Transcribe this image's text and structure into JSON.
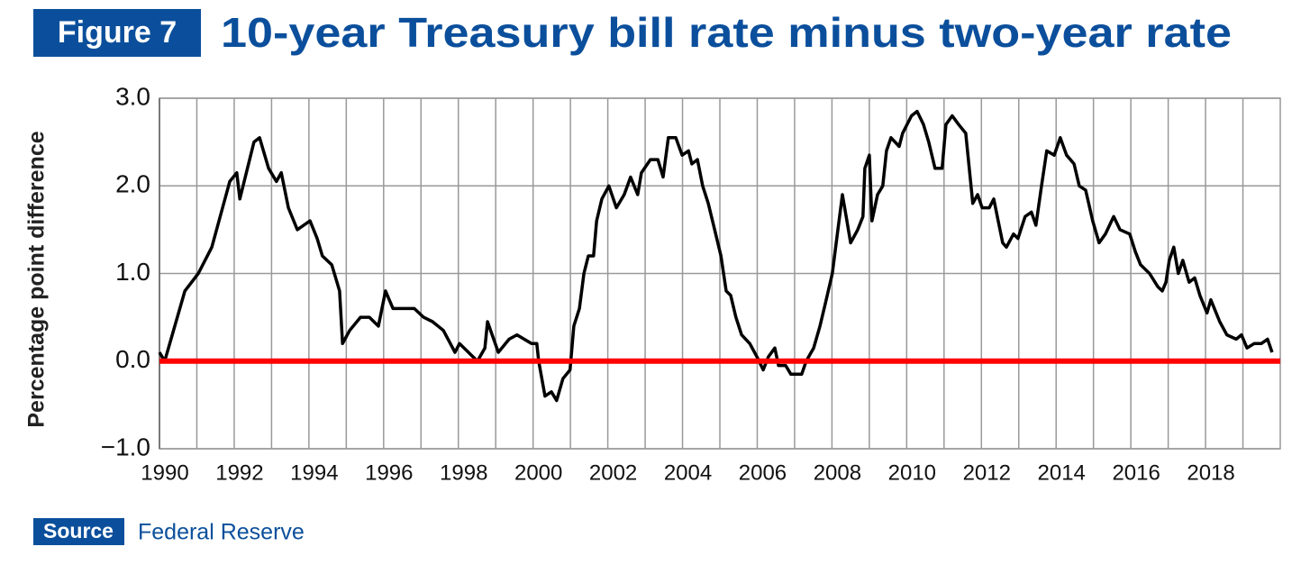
{
  "chart_data": {
    "type": "line",
    "figure_label": "Figure 7",
    "title": "10-year Treasury bill rate minus two-year rate",
    "y_label": "Percentage point difference",
    "source_label": "Source",
    "source": "Federal Reserve",
    "color": "#000000",
    "reference_line": {
      "value": 0,
      "color": "#ff0000"
    },
    "grid": true,
    "xlim": [
      1990,
      2020
    ],
    "xticks": [
      1990,
      1992,
      1994,
      1996,
      1998,
      2000,
      2002,
      2004,
      2006,
      2008,
      2010,
      2012,
      2014,
      2016,
      2018
    ],
    "xminor": [
      1991,
      1993,
      1995,
      1997,
      1999,
      2001,
      2003,
      2005,
      2007,
      2009,
      2011,
      2013,
      2015,
      2017,
      2019
    ],
    "ylim": [
      -1,
      3
    ],
    "yticks": [
      {
        "value": -1,
        "label": "−1.0"
      },
      {
        "value": 0,
        "label": "0.0"
      },
      {
        "value": 1,
        "label": "1.0"
      },
      {
        "value": 2,
        "label": "2.0"
      },
      {
        "value": 3,
        "label": "3.0"
      }
    ],
    "x": [
      1990.0,
      1990.14,
      1990.68,
      1991.04,
      1991.4,
      1991.88,
      1992.07,
      1992.15,
      1992.53,
      1992.68,
      1992.92,
      1993.13,
      1993.26,
      1993.45,
      1993.69,
      1994.03,
      1994.22,
      1994.36,
      1994.61,
      1994.82,
      1994.9,
      1995.09,
      1995.38,
      1995.62,
      1995.86,
      1996.05,
      1996.25,
      1996.82,
      1997.07,
      1997.31,
      1997.6,
      1997.91,
      1998.03,
      1998.39,
      1998.51,
      1998.71,
      1998.78,
      1999.07,
      1999.36,
      1999.57,
      1999.96,
      2000.1,
      2000.15,
      2000.32,
      2000.49,
      2000.63,
      2000.8,
      2000.99,
      2001.09,
      2001.24,
      2001.36,
      2001.48,
      2001.62,
      2001.7,
      2001.84,
      2002.03,
      2002.23,
      2002.44,
      2002.61,
      2002.8,
      2002.9,
      2003.14,
      2003.34,
      2003.48,
      2003.62,
      2003.82,
      2003.99,
      2004.16,
      2004.25,
      2004.4,
      2004.54,
      2004.69,
      2004.86,
      2005.03,
      2005.17,
      2005.29,
      2005.43,
      2005.58,
      2005.8,
      2005.99,
      2006.16,
      2006.3,
      2006.47,
      2006.57,
      2006.76,
      2006.9,
      2007.19,
      2007.31,
      2007.51,
      2007.68,
      2007.82,
      2008.01,
      2008.16,
      2008.28,
      2008.4,
      2008.5,
      2008.69,
      2008.83,
      2008.88,
      2009.0,
      2009.07,
      2009.22,
      2009.36,
      2009.46,
      2009.58,
      2009.8,
      2009.89,
      2010.13,
      2010.28,
      2010.45,
      2010.59,
      2010.76,
      2010.95,
      2011.05,
      2011.22,
      2011.39,
      2011.58,
      2011.77,
      2011.9,
      2012.02,
      2012.21,
      2012.33,
      2012.45,
      2012.57,
      2012.67,
      2012.86,
      2012.98,
      2013.17,
      2013.34,
      2013.46,
      2013.61,
      2013.75,
      2013.95,
      2014.11,
      2014.28,
      2014.48,
      2014.62,
      2014.79,
      2014.98,
      2015.15,
      2015.32,
      2015.54,
      2015.71,
      2015.97,
      2016.12,
      2016.26,
      2016.5,
      2016.72,
      2016.84,
      2016.94,
      2017.03,
      2017.15,
      2017.27,
      2017.39,
      2017.56,
      2017.71,
      2017.85,
      2018.04,
      2018.14,
      2018.38,
      2018.57,
      2018.82,
      2018.96,
      2019.11,
      2019.3,
      2019.49,
      2019.66,
      2019.78
    ],
    "values": [
      0.1,
      0.0,
      0.8,
      1.0,
      1.3,
      2.05,
      2.15,
      1.85,
      2.5,
      2.55,
      2.2,
      2.05,
      2.15,
      1.75,
      1.5,
      1.6,
      1.4,
      1.2,
      1.1,
      0.8,
      0.2,
      0.35,
      0.5,
      0.5,
      0.4,
      0.8,
      0.6,
      0.6,
      0.5,
      0.45,
      0.35,
      0.1,
      0.2,
      0.05,
      0.0,
      0.15,
      0.45,
      0.1,
      0.25,
      0.3,
      0.2,
      0.2,
      0.0,
      -0.4,
      -0.35,
      -0.45,
      -0.2,
      -0.1,
      0.4,
      0.6,
      1.0,
      1.2,
      1.2,
      1.6,
      1.85,
      2.0,
      1.75,
      1.9,
      2.1,
      1.9,
      2.15,
      2.3,
      2.3,
      2.1,
      2.55,
      2.55,
      2.35,
      2.4,
      2.25,
      2.3,
      2.0,
      1.8,
      1.5,
      1.2,
      0.8,
      0.75,
      0.5,
      0.3,
      0.2,
      0.05,
      -0.1,
      0.05,
      0.15,
      -0.05,
      -0.05,
      -0.15,
      -0.15,
      0.0,
      0.15,
      0.4,
      0.65,
      1.0,
      1.5,
      1.9,
      1.6,
      1.35,
      1.5,
      1.65,
      2.2,
      2.35,
      1.6,
      1.9,
      2.0,
      2.4,
      2.55,
      2.45,
      2.6,
      2.8,
      2.85,
      2.7,
      2.5,
      2.2,
      2.2,
      2.7,
      2.8,
      2.7,
      2.6,
      1.8,
      1.9,
      1.75,
      1.75,
      1.85,
      1.6,
      1.35,
      1.3,
      1.45,
      1.4,
      1.65,
      1.7,
      1.55,
      2.0,
      2.4,
      2.35,
      2.55,
      2.35,
      2.25,
      2.0,
      1.95,
      1.6,
      1.35,
      1.45,
      1.65,
      1.5,
      1.45,
      1.25,
      1.1,
      1.0,
      0.85,
      0.8,
      0.9,
      1.15,
      1.3,
      1.0,
      1.15,
      0.9,
      0.95,
      0.75,
      0.55,
      0.7,
      0.45,
      0.3,
      0.25,
      0.3,
      0.15,
      0.2,
      0.2,
      0.25,
      0.1
    ]
  }
}
